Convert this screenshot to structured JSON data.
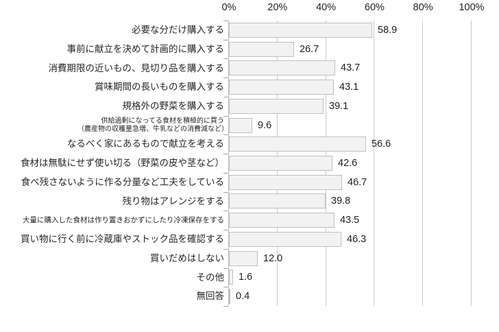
{
  "chart_data": {
    "type": "bar",
    "orientation": "horizontal",
    "title": "",
    "xlabel": "",
    "ylabel": "",
    "x_axis": {
      "position": "top",
      "min": 0,
      "max": 100,
      "tick_labels": [
        "0%",
        "20%",
        "40%",
        "60%",
        "80%",
        "100%"
      ],
      "tick_values": [
        0,
        20,
        40,
        60,
        80,
        100
      ]
    },
    "grid": "vertical-only",
    "legend": "none",
    "bar_color": "#f2f2f2",
    "bar_border_color": "#bfbfbf",
    "gridline_color": "#c9c9c9",
    "text_color": "#262626",
    "categories": [
      {
        "label": "必要な分だけ購入する",
        "size": "normal"
      },
      {
        "label": "事前に献立を決めて計画的に購入する",
        "size": "normal"
      },
      {
        "label": "消費期限の近いもの、見切り品を購入する",
        "size": "normal"
      },
      {
        "label": "賞味期間の長いものを購入する",
        "size": "normal"
      },
      {
        "label": "規格外の野菜を購入する",
        "size": "normal"
      },
      {
        "label": "供給過剰になってる食材を積極的に買う",
        "label2": "（農産物の収穫量急増、牛乳などの消費減など）",
        "size": "xsmall"
      },
      {
        "label": "なるべく家にあるもので献立を考える",
        "size": "normal"
      },
      {
        "label": "食材は無駄にせず使い切る（野菜の皮や茎など）",
        "size": "normal"
      },
      {
        "label": "食べ残さないように作る分量など工夫をしている",
        "size": "normal"
      },
      {
        "label": "残り物はアレンジをする",
        "size": "normal"
      },
      {
        "label": "大量に購入した食材は作り置きおかずにしたり冷凍保存をする",
        "size": "small"
      },
      {
        "label": "買い物に行く前に冷蔵庫やストック品を確認する",
        "size": "normal"
      },
      {
        "label": "買いだめはしない",
        "size": "normal"
      },
      {
        "label": "その他",
        "size": "normal"
      },
      {
        "label": "無回答",
        "size": "normal"
      }
    ],
    "values": [
      58.9,
      26.7,
      43.7,
      43.1,
      39.1,
      9.6,
      56.6,
      42.6,
      46.7,
      39.8,
      43.5,
      46.3,
      12.0,
      1.6,
      0.4
    ],
    "value_labels": [
      "58.9",
      "26.7",
      "43.7",
      "43.1",
      "39.1",
      "9.6",
      "56.6",
      "42.6",
      "46.7",
      "39.8",
      "43.5",
      "46.3",
      "12.0",
      "1.6",
      "0.4"
    ]
  }
}
